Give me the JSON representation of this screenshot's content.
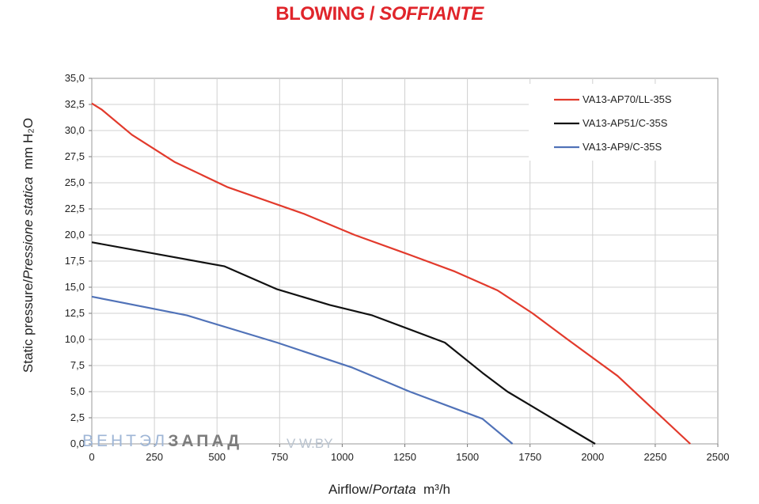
{
  "chart_data": {
    "type": "line",
    "title": "BLOWING",
    "title_italic": "SOFFIANTE",
    "xlabel": "Airflow",
    "xlabel_italic": "Portata",
    "xlabel_unit": "m³/h",
    "ylabel": "Static pressure",
    "ylabel_italic": "Pressione statica",
    "ylabel_unit": "mm H₂O",
    "xlim": [
      0,
      2500
    ],
    "ylim": [
      0,
      35
    ],
    "x_ticks": [
      "0",
      "250",
      "500",
      "750",
      "1000",
      "1250",
      "1500",
      "1750",
      "2000",
      "2250",
      "2500"
    ],
    "y_ticks": [
      "0,0",
      "2,5",
      "5,0",
      "7,5",
      "10,0",
      "12,5",
      "15,0",
      "17,5",
      "20,0",
      "22,5",
      "25,0",
      "27,5",
      "30,0",
      "32,5",
      "35,0"
    ],
    "grid": true,
    "legend_position": "top-right",
    "series": [
      {
        "name": "VA13-AP70/LL-35S",
        "color": "#e23a2c",
        "x": [
          0,
          40,
          160,
          330,
          540,
          850,
          1050,
          1270,
          1450,
          1620,
          1760,
          1900,
          2100,
          2390
        ],
        "y": [
          32.6,
          32.0,
          29.6,
          27.0,
          24.6,
          22.0,
          20.0,
          18.1,
          16.5,
          14.7,
          12.5,
          10.0,
          6.5,
          0.0
        ]
      },
      {
        "name": "VA13-AP51/C-35S",
        "color": "#111111",
        "x": [
          0,
          530,
          740,
          950,
          1120,
          1410,
          1560,
          1660,
          1800,
          2010
        ],
        "y": [
          19.3,
          17.0,
          14.8,
          13.3,
          12.3,
          9.7,
          6.8,
          5.0,
          3.0,
          0.0
        ]
      },
      {
        "name": "VA13-AP9/C-35S",
        "color": "#5072b8",
        "x": [
          0,
          380,
          740,
          1040,
          1270,
          1560,
          1680
        ],
        "y": [
          14.1,
          12.3,
          9.7,
          7.3,
          5.0,
          2.4,
          0.0
        ]
      }
    ]
  },
  "watermark": {
    "left": "ВЕНТЭЛ",
    "mid": "ЗАПАД",
    "right": "V-W.BY"
  }
}
